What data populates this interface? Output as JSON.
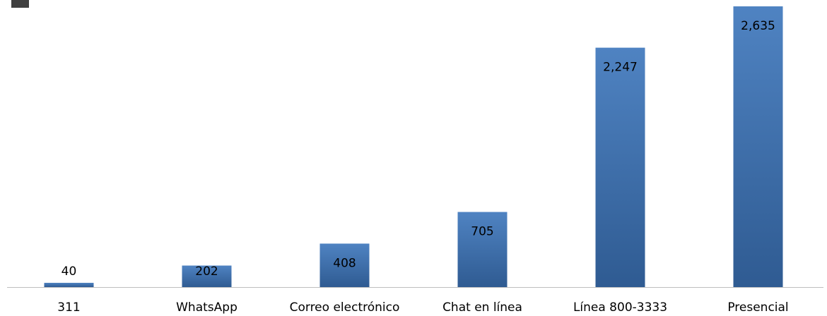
{
  "chart_data": {
    "type": "bar",
    "categories": [
      "311",
      "WhatsApp",
      "Correo electrónico",
      "Chat en línea",
      "Línea 800-3333",
      "Presencial"
    ],
    "values": [
      40,
      202,
      408,
      705,
      2247,
      2635
    ],
    "value_labels": [
      "40",
      "202",
      "408",
      "705",
      "2,247",
      "2,635"
    ],
    "color": "#4a7dba"
  }
}
